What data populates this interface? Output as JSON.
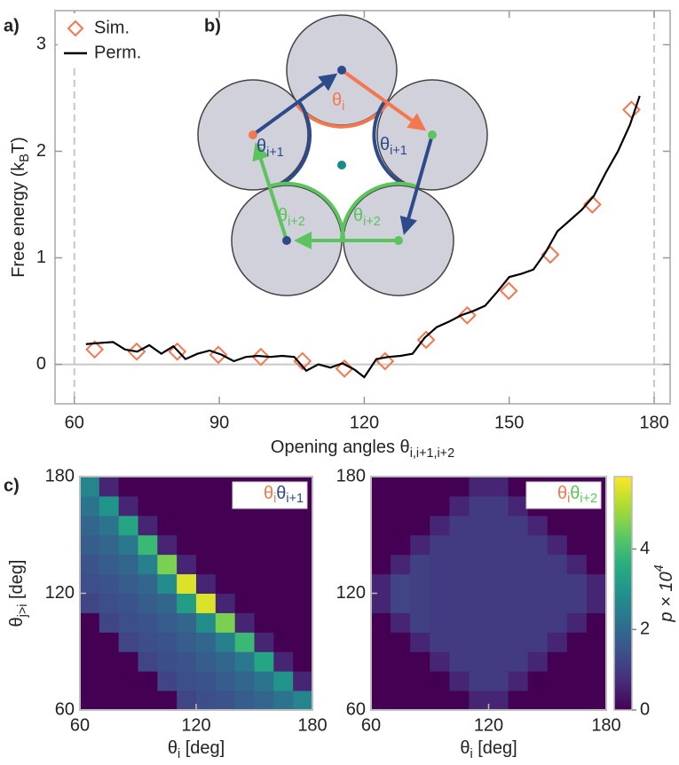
{
  "panel_labels": [
    "a)",
    "b)",
    "c)"
  ],
  "diagram": {
    "labels": [
      {
        "text": "θ",
        "sub": "i"
      },
      {
        "text": "θ",
        "sub": "i+1"
      },
      {
        "text": "θ",
        "sub": "i+1"
      },
      {
        "text": "θ",
        "sub": "i+2"
      },
      {
        "text": "θ",
        "sub": "i+2"
      }
    ]
  },
  "chart_data": [
    {
      "type": "line",
      "xlabel": {
        "text": "Opening angles θ",
        "sub": "i,i+1,i+2"
      },
      "ylabel": {
        "text": "Free energy (k",
        "sub": "B",
        "tail": "T)"
      },
      "xlim": [
        56,
        183.3
      ],
      "ylim": [
        -0.37,
        3.32
      ],
      "xticks": [
        60,
        90,
        120,
        150,
        180
      ],
      "yticks": [
        0,
        1,
        2,
        3
      ],
      "vlines": [
        60,
        180
      ],
      "hline": 0,
      "series": [
        {
          "name": "Sim.",
          "type": "scatter",
          "marker": "diamond",
          "color": "#f4774f",
          "x": [
            64.2,
            72.9,
            81.3,
            89.8,
            98.6,
            107.2,
            115.9,
            124.3,
            132.8,
            141.3,
            149.9,
            158.5,
            167.2,
            175.3
          ],
          "values": [
            0.14,
            0.12,
            0.12,
            0.09,
            0.07,
            0.03,
            -0.04,
            0.03,
            0.23,
            0.46,
            0.69,
            1.03,
            1.5,
            2.39
          ]
        },
        {
          "name": "Perm.",
          "type": "line",
          "color": "#000000",
          "x": [
            62.4,
            65,
            68,
            70.5,
            73,
            75.5,
            78,
            80.5,
            83,
            85.5,
            88,
            90.5,
            93,
            95.5,
            98,
            100.5,
            103,
            105.5,
            108,
            110.5,
            113,
            115.5,
            118,
            120,
            122.5,
            125,
            127.5,
            130,
            132.5,
            135,
            137.5,
            140,
            142.5,
            145,
            147.5,
            150,
            152.5,
            155,
            157.5,
            160,
            162.5,
            165,
            167.5,
            170,
            172.5,
            175,
            177
          ],
          "values": [
            0.19,
            0.2,
            0.21,
            0.14,
            0.12,
            0.18,
            0.1,
            0.17,
            0.05,
            0.1,
            0.13,
            0.09,
            0.03,
            0.07,
            0.08,
            0.07,
            0.08,
            0.07,
            -0.06,
            0.0,
            -0.03,
            0.01,
            -0.05,
            -0.12,
            0.05,
            0.07,
            0.08,
            0.1,
            0.25,
            0.35,
            0.4,
            0.46,
            0.5,
            0.55,
            0.68,
            0.82,
            0.85,
            0.89,
            1.05,
            1.25,
            1.35,
            1.45,
            1.58,
            1.8,
            2.0,
            2.25,
            2.52
          ]
        }
      ]
    },
    {
      "type": "heatmap",
      "legend_label": [
        {
          "text": "θ",
          "sub": "i",
          "color": "#f4774f"
        },
        {
          "text": "θ",
          "sub": "i+1",
          "color": "#2d4a8a"
        }
      ],
      "xlabel": {
        "text": "θ",
        "sub": "i",
        "tail": " [deg]"
      },
      "ylabel": {
        "text": "θ",
        "sub": "j>i",
        "tail": " [deg]"
      },
      "xlim": [
        60,
        180
      ],
      "ylim": [
        60,
        180
      ],
      "xticks": [
        60,
        120,
        180
      ],
      "yticks": [
        60,
        120,
        180
      ],
      "xbins": [
        60,
        70,
        80,
        90,
        100,
        110,
        120,
        130,
        140,
        150,
        160,
        170,
        180
      ],
      "ybins": [
        60,
        70,
        80,
        90,
        100,
        110,
        120,
        130,
        140,
        150,
        160,
        170,
        180
      ],
      "clim": [
        0,
        5.8
      ],
      "z": [
        [
          0,
          0,
          0,
          0,
          0,
          1.2,
          1.4,
          1.5,
          1.7,
          1.9,
          2.2,
          2.6
        ],
        [
          0,
          0,
          0,
          0,
          1.2,
          1.4,
          1.5,
          1.7,
          1.9,
          2.2,
          3.0,
          0.6
        ],
        [
          0,
          0,
          0,
          1.2,
          1.4,
          1.5,
          1.7,
          1.9,
          2.3,
          3.4,
          0.6,
          0
        ],
        [
          0,
          0,
          1.2,
          1.4,
          1.5,
          1.7,
          1.9,
          2.5,
          3.9,
          0.6,
          0,
          0
        ],
        [
          0,
          1.2,
          1.4,
          1.5,
          1.7,
          1.9,
          2.8,
          4.6,
          0.6,
          0,
          0,
          0
        ],
        [
          1.2,
          1.4,
          1.5,
          1.7,
          1.9,
          3.2,
          5.5,
          0.6,
          0,
          0,
          0,
          0
        ],
        [
          1.4,
          1.5,
          1.7,
          1.9,
          2.8,
          5.5,
          0.6,
          0,
          0,
          0,
          0,
          0
        ],
        [
          1.5,
          1.7,
          1.9,
          2.5,
          4.6,
          0.6,
          0,
          0,
          0,
          0,
          0,
          0
        ],
        [
          1.7,
          1.9,
          2.3,
          3.9,
          0.6,
          0,
          0,
          0,
          0,
          0,
          0,
          0
        ],
        [
          1.9,
          2.2,
          3.4,
          0.6,
          0,
          0,
          0,
          0,
          0,
          0,
          0,
          0
        ],
        [
          2.2,
          3.0,
          0.6,
          0,
          0,
          0,
          0,
          0,
          0,
          0,
          0,
          0
        ],
        [
          2.6,
          0.6,
          0,
          0,
          0,
          0,
          0,
          0,
          0,
          0,
          0,
          0
        ]
      ]
    },
    {
      "type": "heatmap",
      "legend_label": [
        {
          "text": "θ",
          "sub": "i",
          "color": "#f4774f"
        },
        {
          "text": "θ",
          "sub": "i+2",
          "color": "#5cc45c"
        }
      ],
      "xlabel": {
        "text": "θ",
        "sub": "i",
        "tail": " [deg]"
      },
      "xlim": [
        60,
        180
      ],
      "ylim": [
        60,
        180
      ],
      "xticks": [
        60,
        120,
        180
      ],
      "yticks": [
        60,
        120,
        180
      ],
      "xbins": [
        60,
        70,
        80,
        90,
        100,
        110,
        120,
        130,
        140,
        150,
        160,
        170,
        180
      ],
      "ybins": [
        60,
        70,
        80,
        90,
        100,
        110,
        120,
        130,
        140,
        150,
        160,
        170,
        180
      ],
      "clim": [
        0,
        5.8
      ],
      "colorbar": {
        "label": {
          "text": "p × 10",
          "sup": "4"
        },
        "ticks": [
          0,
          2,
          4
        ]
      },
      "z": [
        [
          0,
          0,
          0,
          0,
          0,
          0.6,
          0.6,
          0,
          0,
          0,
          0,
          0
        ],
        [
          0,
          0,
          0,
          0,
          0.6,
          1.0,
          1.0,
          0.6,
          0,
          0,
          0,
          0
        ],
        [
          0,
          0,
          0,
          0.6,
          1.0,
          1.0,
          1.0,
          1.0,
          0.6,
          0,
          0,
          0
        ],
        [
          0,
          0,
          0.6,
          1.0,
          1.0,
          1.0,
          1.0,
          1.0,
          1.0,
          0.6,
          0,
          0
        ],
        [
          0,
          0.6,
          1.1,
          1.0,
          1.0,
          1.0,
          1.0,
          1.0,
          1.0,
          1.0,
          0.6,
          0
        ],
        [
          0.6,
          1.2,
          1.1,
          1.0,
          1.0,
          1.0,
          1.0,
          1.0,
          1.0,
          1.0,
          1.0,
          0.6
        ],
        [
          0.6,
          1.2,
          1.1,
          1.0,
          1.0,
          1.0,
          1.0,
          1.0,
          1.0,
          1.0,
          1.0,
          0.6
        ],
        [
          0,
          0.6,
          1.1,
          1.0,
          1.0,
          1.0,
          1.0,
          1.0,
          1.0,
          1.0,
          0.6,
          0
        ],
        [
          0,
          0,
          0.6,
          1.0,
          1.0,
          1.0,
          1.0,
          1.0,
          1.0,
          0.6,
          0,
          0
        ],
        [
          0,
          0,
          0,
          0.6,
          1.0,
          1.0,
          1.0,
          1.0,
          0.6,
          0,
          0,
          0
        ],
        [
          0,
          0,
          0,
          0,
          0.6,
          1.0,
          1.0,
          0.6,
          0,
          0,
          0,
          0
        ],
        [
          0,
          0,
          0,
          0,
          0,
          0.6,
          0.6,
          0,
          0,
          0,
          0,
          0
        ]
      ]
    }
  ]
}
